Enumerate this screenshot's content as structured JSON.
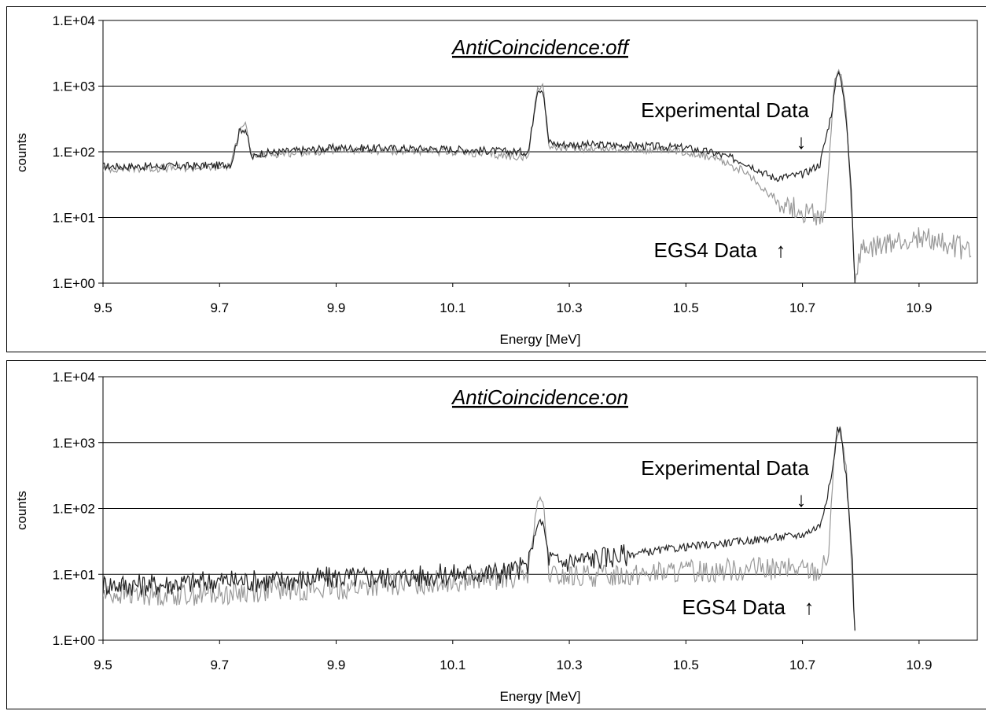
{
  "chart_data": [
    {
      "type": "line",
      "title": "AntiCoincidence:off",
      "xlabel": "Energy [MeV]",
      "ylabel": "counts",
      "yscale": "log",
      "xlim": [
        9.5,
        11.0
      ],
      "ylim": [
        1,
        10000
      ],
      "xticks": [
        "9.5",
        "9.7",
        "9.9",
        "10.1",
        "10.3",
        "10.5",
        "10.7",
        "10.9"
      ],
      "yticks": [
        "1.E+00",
        "1.E+01",
        "1.E+02",
        "1.E+03",
        "1.E+04"
      ],
      "grid": "horizontal",
      "annotations": [
        {
          "text": "Experimental Data",
          "arrow": "↓"
        },
        {
          "text": "EGS4 Data",
          "arrow": "↑"
        }
      ],
      "series": [
        {
          "color": "#222222",
          "x": [
            9.5,
            9.6,
            9.7,
            9.72,
            9.735,
            9.745,
            9.755,
            9.77,
            9.9,
            10.1,
            10.2,
            10.23,
            10.245,
            10.255,
            10.265,
            10.28,
            10.4,
            10.5,
            10.55,
            10.6,
            10.65,
            10.7,
            10.73,
            10.75,
            10.76,
            10.765,
            10.775,
            10.785,
            10.79
          ],
          "y": [
            60,
            60,
            62,
            66,
            220,
            220,
            80,
            95,
            115,
            110,
            100,
            100,
            900,
            900,
            140,
            130,
            125,
            115,
            95,
            70,
            40,
            45,
            65,
            400,
            1600,
            1600,
            300,
            20,
            1
          ]
        },
        {
          "color": "#999999",
          "x": [
            9.5,
            9.6,
            9.7,
            9.72,
            9.735,
            9.745,
            9.755,
            9.77,
            9.9,
            10.1,
            10.2,
            10.23,
            10.245,
            10.255,
            10.265,
            10.28,
            10.4,
            10.5,
            10.55,
            10.6,
            10.65,
            10.7,
            10.73,
            10.74,
            10.755,
            10.765,
            10.775,
            10.785,
            10.79,
            10.8,
            10.85,
            10.9,
            10.95,
            10.99
          ],
          "y": [
            55,
            56,
            58,
            62,
            260,
            260,
            80,
            90,
            105,
            100,
            85,
            85,
            1000,
            1000,
            120,
            115,
            110,
            100,
            80,
            50,
            20,
            12,
            11,
            12,
            1200,
            1700,
            400,
            10,
            1,
            3,
            4,
            5,
            4,
            3
          ]
        }
      ]
    },
    {
      "type": "line",
      "title": "AntiCoincidence:on",
      "xlabel": "Energy [MeV]",
      "ylabel": "counts",
      "yscale": "log",
      "xlim": [
        9.5,
        11.0
      ],
      "ylim": [
        1,
        10000
      ],
      "xticks": [
        "9.5",
        "9.7",
        "9.9",
        "10.1",
        "10.3",
        "10.5",
        "10.7",
        "10.9"
      ],
      "yticks": [
        "1.E+00",
        "1.E+01",
        "1.E+02",
        "1.E+03",
        "1.E+04"
      ],
      "grid": "horizontal",
      "annotations": [
        {
          "text": "Experimental Data",
          "arrow": "↓"
        },
        {
          "text": "EGS4 Data",
          "arrow": "↑"
        }
      ],
      "series": [
        {
          "color": "#222222",
          "x": [
            9.5,
            9.6,
            9.7,
            9.8,
            9.9,
            10.0,
            10.1,
            10.2,
            10.23,
            10.245,
            10.255,
            10.265,
            10.28,
            10.4,
            10.5,
            10.6,
            10.7,
            10.73,
            10.75,
            10.76,
            10.765,
            10.775,
            10.785,
            10.79
          ],
          "y": [
            7,
            7,
            8,
            8,
            9,
            9,
            10,
            11,
            14,
            60,
            60,
            18,
            15,
            20,
            26,
            32,
            40,
            55,
            300,
            1600,
            1600,
            300,
            20,
            1
          ]
        },
        {
          "color": "#999999",
          "x": [
            9.5,
            9.6,
            9.7,
            9.8,
            9.9,
            10.0,
            10.1,
            10.2,
            10.23,
            10.245,
            10.255,
            10.265,
            10.28,
            10.4,
            10.5,
            10.6,
            10.7,
            10.73,
            10.745,
            10.755,
            10.765,
            10.775,
            10.785,
            10.79
          ],
          "y": [
            5,
            5,
            5,
            6,
            6,
            7,
            8,
            9,
            10,
            130,
            130,
            10,
            9,
            10,
            11,
            12,
            12,
            11,
            20,
            900,
            1700,
            400,
            10,
            1
          ]
        }
      ]
    }
  ]
}
